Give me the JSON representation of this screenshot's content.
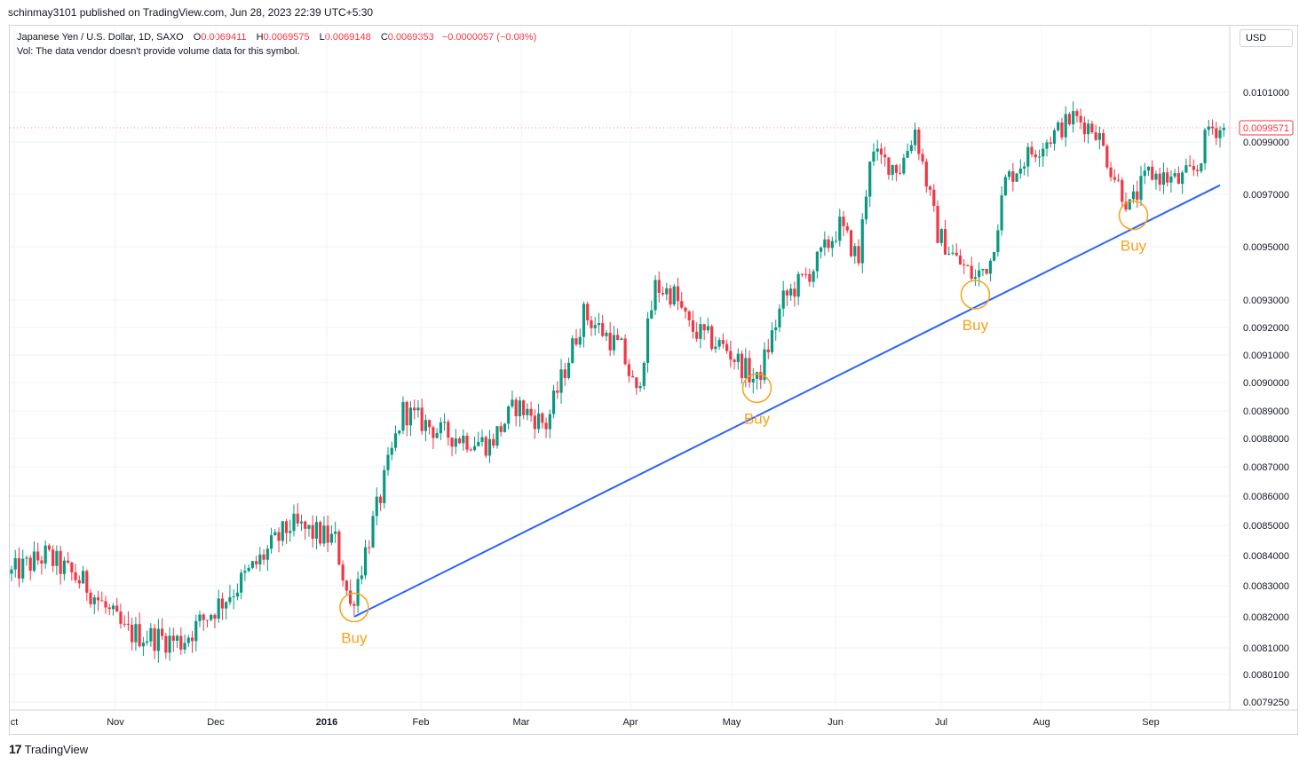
{
  "header": {
    "published": "schinmay3101 published on TradingView.com, Jun 28, 2023 22:39 UTC+5:30"
  },
  "legend": {
    "symbol": "Japanese Yen / U.S. Dollar, 1D, SAXO",
    "o_label": "O",
    "o_value": "0.0069411",
    "h_label": "H",
    "h_value": "0.0069575",
    "l_label": "L",
    "l_value": "0.0069148",
    "c_label": "C",
    "c_value": "0.0069353",
    "change": "−0.0000057 (−0.08%)",
    "vol_note": "Vol: The data vendor doesn't provide volume data for this symbol."
  },
  "currency": "USD",
  "footer": {
    "brand": "TradingView"
  },
  "colors": {
    "up": "#089981",
    "down": "#f23645",
    "trendline": "#2962ff",
    "annotation": "#f7a21b",
    "grid": "#f0f3fa",
    "last_price": "#f23645"
  },
  "chart_data": {
    "type": "candlestick",
    "title": "Japanese Yen / U.S. Dollar, 1D, SAXO",
    "y_ticks": [
      "0.0101000",
      "0.0099000",
      "0.0097000",
      "0.0095000",
      "0.0093000",
      "0.0092000",
      "0.0091000",
      "0.0090000",
      "0.0089000",
      "0.0088000",
      "0.0087000",
      "0.0086000",
      "0.0085000",
      "0.0084000",
      "0.0083000",
      "0.0082000",
      "0.0081000",
      "0.0080100",
      "0.0079250"
    ],
    "x_ticks": [
      "ct",
      "Nov",
      "Dec",
      "2016",
      "Feb",
      "Mar",
      "Apr",
      "May",
      "Jun",
      "Jul",
      "Aug",
      "Sep"
    ],
    "last_price": "0.0099571",
    "anchors": [
      {
        "day": 0,
        "price": 0.00834
      },
      {
        "day": 9,
        "price": 0.0084
      },
      {
        "day": 20,
        "price": 0.0083
      },
      {
        "day": 30,
        "price": 0.00815
      },
      {
        "day": 45,
        "price": 0.00812
      },
      {
        "day": 60,
        "price": 0.0083
      },
      {
        "day": 74,
        "price": 0.0085
      },
      {
        "day": 86,
        "price": 0.00845
      },
      {
        "day": 90,
        "price": 0.00823
      },
      {
        "day": 98,
        "price": 0.0086
      },
      {
        "day": 104,
        "price": 0.0089
      },
      {
        "day": 114,
        "price": 0.00882
      },
      {
        "day": 127,
        "price": 0.00878
      },
      {
        "day": 134,
        "price": 0.00892
      },
      {
        "day": 142,
        "price": 0.00885
      },
      {
        "day": 152,
        "price": 0.00925
      },
      {
        "day": 162,
        "price": 0.00912
      },
      {
        "day": 166,
        "price": 0.00895
      },
      {
        "day": 171,
        "price": 0.00935
      },
      {
        "day": 176,
        "price": 0.00932
      },
      {
        "day": 180,
        "price": 0.0092
      },
      {
        "day": 190,
        "price": 0.00912
      },
      {
        "day": 198,
        "price": 0.009
      },
      {
        "day": 205,
        "price": 0.0093
      },
      {
        "day": 213,
        "price": 0.00942
      },
      {
        "day": 220,
        "price": 0.00958
      },
      {
        "day": 225,
        "price": 0.00945
      },
      {
        "day": 228,
        "price": 0.00985
      },
      {
        "day": 236,
        "price": 0.0098
      },
      {
        "day": 240,
        "price": 0.00995
      },
      {
        "day": 246,
        "price": 0.00955
      },
      {
        "day": 251,
        "price": 0.00945
      },
      {
        "day": 256,
        "price": 0.00938
      },
      {
        "day": 260,
        "price": 0.00945
      },
      {
        "day": 264,
        "price": 0.00975
      },
      {
        "day": 270,
        "price": 0.00985
      },
      {
        "day": 276,
        "price": 0.00992
      },
      {
        "day": 282,
        "price": 0.01
      },
      {
        "day": 288,
        "price": 0.00995
      },
      {
        "day": 292,
        "price": 0.0098
      },
      {
        "day": 297,
        "price": 0.00965
      },
      {
        "day": 302,
        "price": 0.00978
      },
      {
        "day": 310,
        "price": 0.00975
      },
      {
        "day": 315,
        "price": 0.0098
      },
      {
        "day": 318,
        "price": 0.00996
      },
      {
        "day": 322,
        "price": 0.00995
      }
    ],
    "trendline": {
      "start": {
        "day": 91,
        "price": 0.0082
      },
      "end": {
        "day": 321,
        "price": 0.009735
      }
    },
    "annotations": [
      {
        "text": "Buy",
        "day": 91,
        "price": 0.00823
      },
      {
        "text": "Buy",
        "day": 198,
        "price": 0.00898
      },
      {
        "text": "Buy",
        "day": 256,
        "price": 0.00932
      },
      {
        "text": "Buy",
        "day": 298,
        "price": 0.00962
      }
    ]
  }
}
